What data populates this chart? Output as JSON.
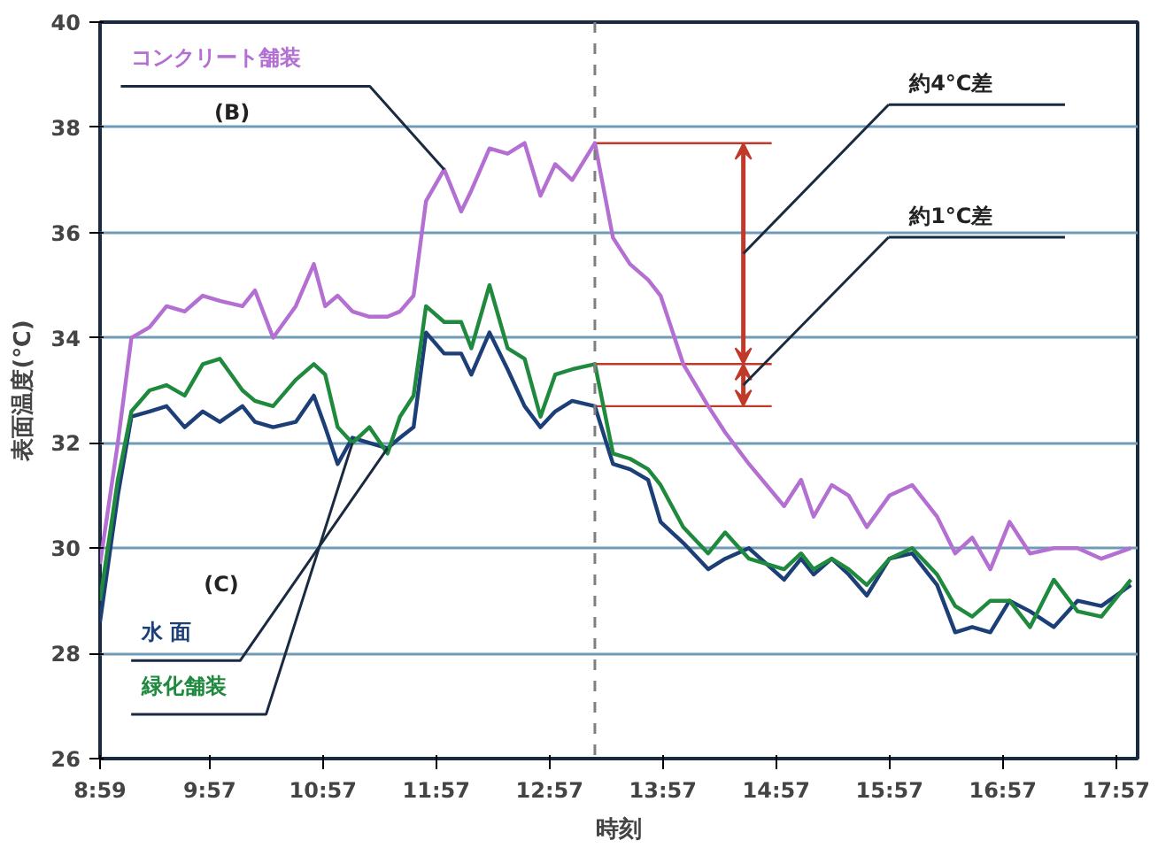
{
  "chart_data": {
    "type": "line",
    "xlabel": "時刻",
    "ylabel": "表面温度(℃)",
    "xlim": [
      8.983,
      18.14
    ],
    "ylim": [
      26,
      40
    ],
    "xticks": [
      {
        "value": 8.983,
        "label": "8:59"
      },
      {
        "value": 9.95,
        "label": "9:57"
      },
      {
        "value": 10.95,
        "label": "10:57"
      },
      {
        "value": 11.95,
        "label": "11:57"
      },
      {
        "value": 12.95,
        "label": "12:57"
      },
      {
        "value": 13.95,
        "label": "13:57"
      },
      {
        "value": 14.95,
        "label": "14:57"
      },
      {
        "value": 15.95,
        "label": "15:57"
      },
      {
        "value": 16.95,
        "label": "16:57"
      },
      {
        "value": 17.95,
        "label": "17:57"
      }
    ],
    "yticks": [
      26,
      28,
      30,
      32,
      34,
      36,
      38,
      40
    ],
    "grid": "y",
    "marker": "none",
    "line_style": "solid",
    "x": [
      8.983,
      9.14,
      9.26,
      9.42,
      9.57,
      9.73,
      9.89,
      10.04,
      10.24,
      10.35,
      10.51,
      10.71,
      10.87,
      10.97,
      11.08,
      11.21,
      11.36,
      11.52,
      11.63,
      11.75,
      11.86,
      12.02,
      12.17,
      12.26,
      12.42,
      12.58,
      12.73,
      12.87,
      13.0,
      13.15,
      13.35,
      13.51,
      13.66,
      13.82,
      13.93,
      14.13,
      14.35,
      14.5,
      14.71,
      15.02,
      15.17,
      15.28,
      15.44,
      15.59,
      15.75,
      15.95,
      16.15,
      16.37,
      16.53,
      16.68,
      16.84,
      17.01,
      17.19,
      17.4,
      17.61,
      17.82,
      18.08
    ],
    "series": [
      {
        "name": "コンクリート舗装",
        "color": "#b46fd2",
        "values": [
          29.7,
          32.0,
          34.0,
          34.2,
          34.6,
          34.5,
          34.8,
          34.7,
          34.6,
          34.9,
          34.0,
          34.6,
          35.4,
          34.6,
          34.8,
          34.5,
          34.4,
          34.4,
          34.5,
          34.8,
          36.6,
          37.2,
          36.4,
          36.8,
          37.6,
          37.5,
          37.7,
          36.7,
          37.3,
          37.0,
          37.7,
          35.9,
          35.4,
          35.1,
          34.8,
          33.5,
          32.7,
          32.2,
          31.6,
          30.8,
          31.3,
          30.6,
          31.2,
          31.0,
          30.4,
          31.0,
          31.2,
          30.6,
          29.9,
          30.2,
          29.6,
          30.5,
          29.9,
          30.0,
          30.0,
          29.8,
          30.0
        ]
      },
      {
        "name": "水 面",
        "color": "#1d3f78",
        "values": [
          28.6,
          31.0,
          32.5,
          32.6,
          32.7,
          32.3,
          32.6,
          32.4,
          32.7,
          32.4,
          32.3,
          32.4,
          32.9,
          32.3,
          31.6,
          32.1,
          32.0,
          31.9,
          32.1,
          32.3,
          34.1,
          33.7,
          33.7,
          33.3,
          34.1,
          33.4,
          32.7,
          32.3,
          32.6,
          32.8,
          32.7,
          31.6,
          31.5,
          31.3,
          30.5,
          30.1,
          29.6,
          29.8,
          30.0,
          29.4,
          29.8,
          29.5,
          29.8,
          29.5,
          29.1,
          29.8,
          29.9,
          29.3,
          28.4,
          28.5,
          28.4,
          29.0,
          28.8,
          28.5,
          29.0,
          28.9,
          29.3
        ]
      },
      {
        "name": "緑化舗装",
        "color": "#1f8a3e",
        "values": [
          29.0,
          31.3,
          32.6,
          33.0,
          33.1,
          32.9,
          33.5,
          33.6,
          33.0,
          32.8,
          32.7,
          33.2,
          33.5,
          33.3,
          32.3,
          32.0,
          32.3,
          31.8,
          32.5,
          32.9,
          34.6,
          34.3,
          34.3,
          33.8,
          35.0,
          33.8,
          33.6,
          32.5,
          33.3,
          33.4,
          33.5,
          31.8,
          31.7,
          31.5,
          31.2,
          30.4,
          29.9,
          30.3,
          29.8,
          29.6,
          29.9,
          29.6,
          29.8,
          29.6,
          29.3,
          29.8,
          30.0,
          29.5,
          28.9,
          28.7,
          29.0,
          29.0,
          28.5,
          29.4,
          28.8,
          28.7,
          29.4
        ]
      }
    ],
    "ref_lines": [
      {
        "axis": "x",
        "value": 13.35,
        "color": "#7f7f7f",
        "line_style": "dashed"
      },
      {
        "axis": "y",
        "value": 37.7,
        "color": "#c0392b",
        "line_style": "solid"
      },
      {
        "axis": "y",
        "value": 33.5,
        "color": "#c0392b",
        "line_style": "solid"
      },
      {
        "axis": "y",
        "value": 32.7,
        "color": "#c0392b",
        "line_style": "solid"
      }
    ],
    "annotations": [
      "(B)",
      "(C)",
      "約4°C差",
      "約1°C差"
    ]
  }
}
